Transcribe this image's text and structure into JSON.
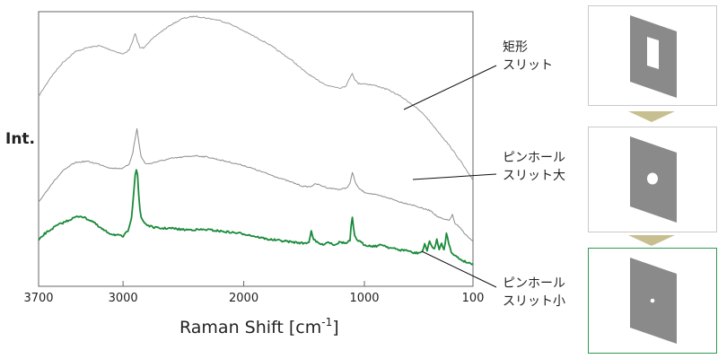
{
  "chart_data": {
    "type": "line",
    "xlabel": "Raman Shift [cm",
    "xlabel_sup": "-1",
    "xlabel_close": "]",
    "ylabel": "Int.",
    "xlim": [
      3700,
      100
    ],
    "x_reversed": true,
    "xticks": [
      3700,
      3000,
      2000,
      1000,
      100
    ],
    "xtick_labels": [
      "3700",
      "3000",
      "2000",
      "1000",
      "100"
    ],
    "ylim": [
      0,
      100
    ],
    "grid": false,
    "series": [
      {
        "name": "矩形\nスリット",
        "color": "#9a9a9a",
        "x": [
          3700,
          3600,
          3500,
          3400,
          3300,
          3200,
          3100,
          3000,
          2950,
          2920,
          2900,
          2880,
          2860,
          2830,
          2800,
          2700,
          2600,
          2500,
          2400,
          2300,
          2200,
          2100,
          2000,
          1900,
          1800,
          1700,
          1600,
          1500,
          1400,
          1300,
          1200,
          1150,
          1120,
          1100,
          1080,
          1050,
          1000,
          900,
          800,
          700,
          600,
          500,
          400,
          300,
          200,
          100
        ],
        "y": [
          62,
          71,
          78,
          83,
          85,
          86,
          84,
          82,
          84,
          88,
          92,
          88,
          85,
          85,
          87,
          92,
          96,
          99,
          100,
          99,
          98,
          96,
          93,
          90,
          87,
          83,
          79,
          74,
          70,
          67,
          66,
          67,
          71,
          73,
          70,
          68,
          68,
          67,
          65,
          62,
          58,
          53,
          46,
          39,
          31,
          22
        ]
      },
      {
        "name": "ピンホール\nスリット大",
        "color": "#8c8c8c",
        "x": [
          3700,
          3600,
          3500,
          3400,
          3300,
          3200,
          3100,
          3000,
          2950,
          2920,
          2900,
          2885,
          2870,
          2850,
          2820,
          2800,
          2700,
          2600,
          2500,
          2400,
          2300,
          2200,
          2100,
          2000,
          1900,
          1800,
          1700,
          1600,
          1500,
          1450,
          1400,
          1300,
          1200,
          1150,
          1120,
          1100,
          1085,
          1070,
          1050,
          1000,
          900,
          800,
          700,
          600,
          500,
          450,
          400,
          350,
          300,
          270,
          250,
          200,
          150,
          100
        ],
        "y": [
          33,
          45,
          55,
          61,
          62,
          60,
          57,
          57,
          60,
          68,
          78,
          85,
          76,
          65,
          61,
          60,
          62,
          64,
          65,
          66,
          65,
          63,
          61,
          59,
          56,
          53,
          50,
          47,
          44,
          44,
          46,
          43,
          42,
          43,
          46,
          54,
          50,
          46,
          43,
          40,
          38,
          36,
          33,
          31,
          28,
          27,
          23,
          21,
          20,
          24,
          18,
          14,
          9,
          5
        ]
      },
      {
        "name": "ピンホール\nスリット小",
        "color": "#1a8a3a",
        "x": [
          3700,
          3650,
          3600,
          3550,
          3500,
          3450,
          3400,
          3350,
          3300,
          3250,
          3200,
          3150,
          3100,
          3050,
          3000,
          2960,
          2930,
          2910,
          2900,
          2890,
          2880,
          2870,
          2860,
          2850,
          2830,
          2810,
          2790,
          2760,
          2700,
          2600,
          2500,
          2400,
          2300,
          2200,
          2100,
          2000,
          1900,
          1800,
          1700,
          1600,
          1500,
          1460,
          1440,
          1420,
          1400,
          1350,
          1300,
          1250,
          1200,
          1150,
          1120,
          1110,
          1100,
          1090,
          1080,
          1065,
          1050,
          1000,
          950,
          900,
          850,
          800,
          750,
          700,
          650,
          600,
          550,
          520,
          500,
          480,
          460,
          440,
          420,
          400,
          380,
          360,
          340,
          320,
          300,
          280,
          250,
          200,
          150,
          100
        ],
        "y": [
          21,
          26,
          29,
          32,
          34,
          36,
          38,
          39,
          37,
          35,
          31,
          28,
          26,
          25,
          24,
          28,
          38,
          58,
          69,
          73,
          69,
          54,
          44,
          38,
          35,
          33,
          32,
          31,
          30,
          30,
          29,
          29,
          29,
          28,
          27,
          26,
          24,
          22,
          21,
          20,
          19,
          20,
          28,
          22,
          20,
          18,
          20,
          18,
          20,
          19,
          21,
          31,
          38,
          30,
          24,
          22,
          21,
          18,
          17,
          17,
          18,
          16,
          15,
          14,
          14,
          12,
          12,
          13,
          18,
          14,
          21,
          16,
          15,
          22,
          14,
          19,
          14,
          26,
          19,
          13,
          10,
          7,
          5,
          4
        ]
      }
    ]
  },
  "slit_panels": [
    {
      "shape": "rectangle",
      "state": "normal"
    },
    {
      "shape": "pinhole-large",
      "state": "normal"
    },
    {
      "shape": "pinhole-small",
      "state": "active"
    }
  ],
  "colors": {
    "highlight_series": "#1a8a3a",
    "active_panel_border": "#2e9a52",
    "panel_border": "#c9c9c9",
    "arrow": "#c8bf90",
    "slit_plate": "#8a8a8a"
  }
}
